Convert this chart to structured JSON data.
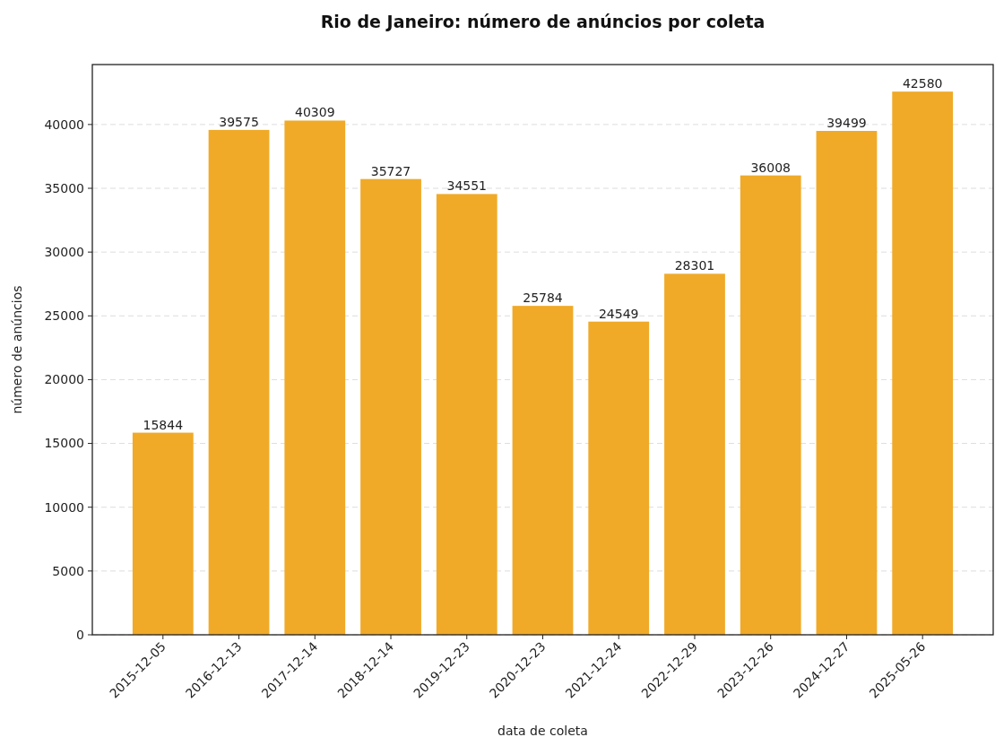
{
  "chart_data": {
    "type": "bar",
    "title": "Rio de Janeiro: número de anúncios por coleta",
    "xlabel": "data de coleta",
    "ylabel": "número de anúncios",
    "categories": [
      "2015-12-05",
      "2016-12-13",
      "2017-12-14",
      "2018-12-14",
      "2019-12-23",
      "2020-12-23",
      "2021-12-24",
      "2022-12-29",
      "2023-12-26",
      "2024-12-27",
      "2025-05-26"
    ],
    "values": [
      15844,
      39575,
      40309,
      35727,
      34551,
      25784,
      24549,
      28301,
      36008,
      39499,
      42580
    ],
    "color": "#f0aa28",
    "ylim": [
      0,
      44700
    ],
    "yticks": [
      0,
      5000,
      10000,
      15000,
      20000,
      25000,
      30000,
      35000,
      40000
    ],
    "grid": "y",
    "data_labels": true
  }
}
